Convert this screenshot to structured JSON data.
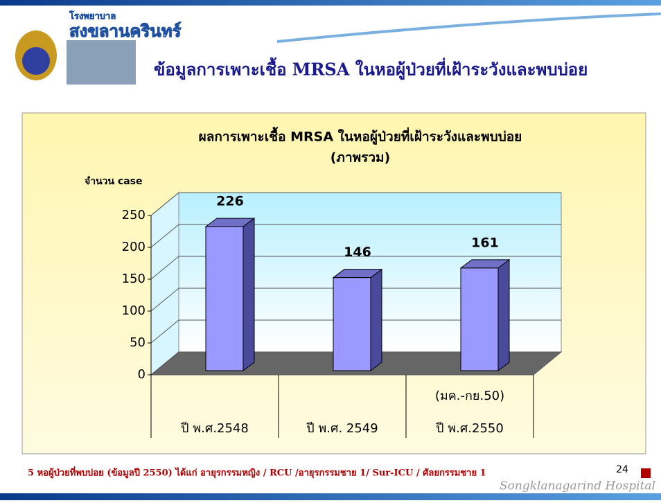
{
  "header": {
    "hospital_small": "โรงพยาบาล",
    "hospital": "สงขลานครินทร์",
    "title": "ข้อมูลการเพาะเชื้อ MRSA ในหอผู้ป่วยที่เฝ้าระวังและพบบ่อย"
  },
  "chart_data": {
    "type": "bar3d",
    "title": "ผลการเพาะเชื้อ MRSA ในหอผู้ป่วยที่เฝ้าระวังและพบบ่อย",
    "subtitle": "(ภาพรวม)",
    "y_label": "จำนวน case",
    "categories": [
      "ปี พ.ศ.2548",
      "ปี พ.ศ. 2549",
      "ปี พ.ศ.2550"
    ],
    "category_notes": [
      null,
      null,
      "(มค.-กย.50)"
    ],
    "values": [
      226,
      146,
      161
    ],
    "color": "#9999ff",
    "ylim": [
      0,
      250
    ],
    "yticks": [
      0,
      50,
      100,
      150,
      200,
      250
    ],
    "grid": true
  },
  "footer": {
    "note": "5 หอผู้ป่วยที่พบบ่อย (ข้อมูลปี 2550) ได้แก่ อายุรกรรมหญิง /  RCU /อายุรกรรมชาย 1/ Sur-ICU / ศัลยกรรมชาย 1",
    "page": "24",
    "brand": "Songklanagarind Hospital"
  }
}
